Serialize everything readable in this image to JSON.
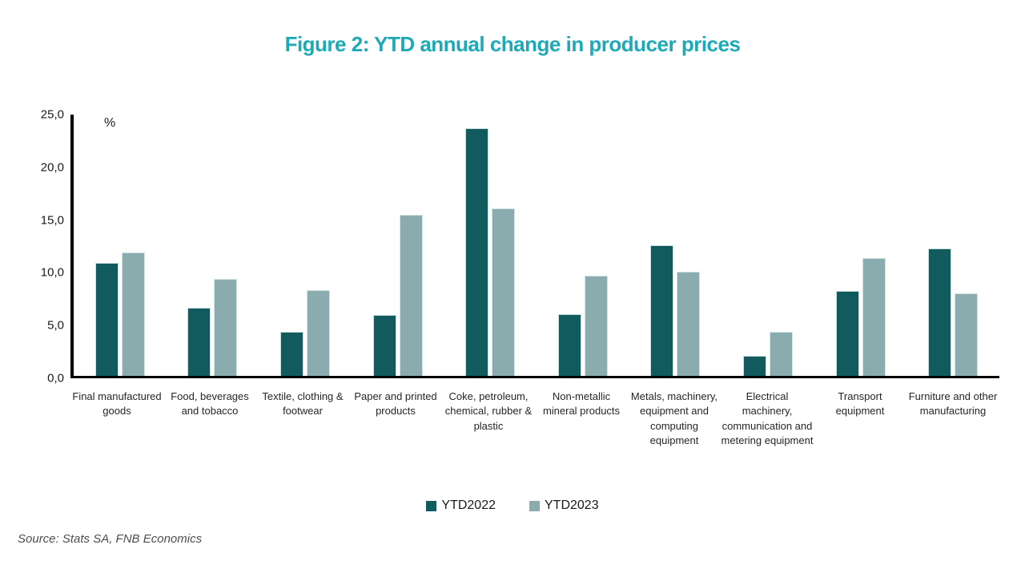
{
  "title": "Figure 2: YTD annual change in producer prices",
  "unit_label": "%",
  "source": "Source: Stats SA, FNB Economics",
  "colors": {
    "title": "#1EA9B7",
    "series1": "#115B5E",
    "series2": "#8AACAE",
    "axis": "#000000"
  },
  "y_axis": {
    "min": 0,
    "max": 25,
    "ticks": [
      {
        "label": "25,0",
        "value": 25
      },
      {
        "label": "20,0",
        "value": 20
      },
      {
        "label": "15,0",
        "value": 15
      },
      {
        "label": "10,0",
        "value": 10
      },
      {
        "label": "5,0",
        "value": 5
      },
      {
        "label": "0,0",
        "value": 0
      }
    ]
  },
  "legend": {
    "items": [
      {
        "label": "YTD2022",
        "color": "#115B5E"
      },
      {
        "label": "YTD2023",
        "color": "#8AACAE"
      }
    ]
  },
  "chart_data": {
    "type": "bar",
    "title": "Figure 2: YTD annual change in producer prices",
    "xlabel": "",
    "ylabel": "%",
    "ylim": [
      0,
      25
    ],
    "grid": false,
    "legend_position": "bottom",
    "categories": [
      "Final manufactured goods",
      "Food, beverages and tobacco",
      "Textile, clothing & footwear",
      "Paper and printed products",
      "Coke, petroleum, chemical, rubber & plastic",
      "Non-metallic mineral products",
      "Metals, machinery, equipment and computing equipment",
      "Electrical machinery, communication and metering equipment",
      "Transport equipment",
      "Furniture and other manufacturing"
    ],
    "series": [
      {
        "name": "YTD2022",
        "values": [
          10.8,
          6.5,
          4.2,
          5.8,
          23.7,
          5.9,
          12.5,
          1.9,
          8.1,
          12.2
        ]
      },
      {
        "name": "YTD2023",
        "values": [
          11.8,
          9.3,
          8.2,
          15.4,
          16.0,
          9.6,
          10.0,
          4.2,
          11.3,
          7.9
        ]
      }
    ]
  }
}
